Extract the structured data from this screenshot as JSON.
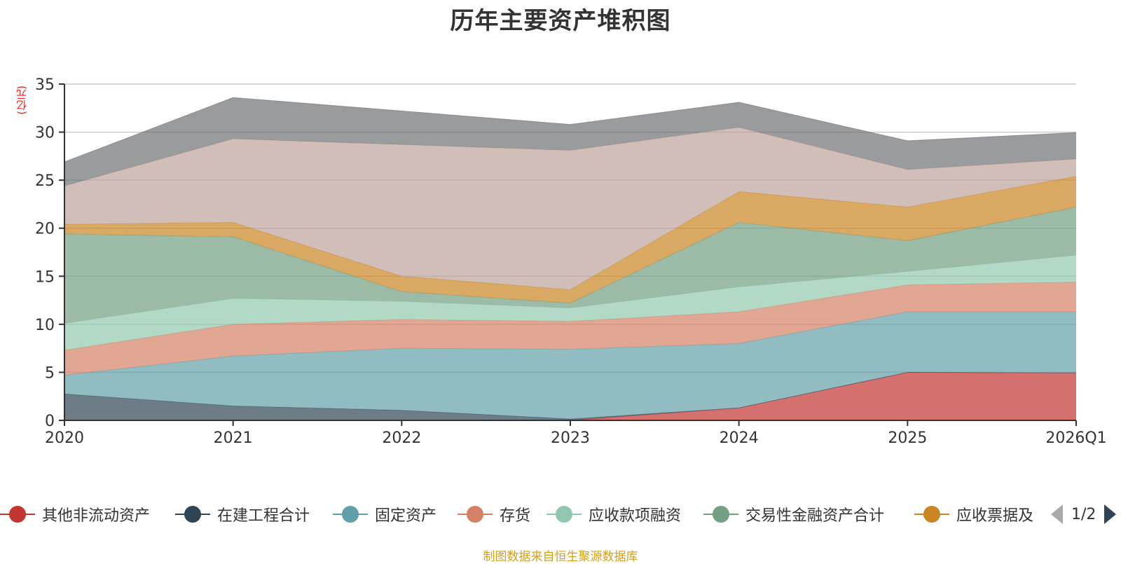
{
  "title": "历年主要资产堆积图",
  "unit_label": "(亿元)",
  "footer": "制图数据来自恒生聚源数据库",
  "legend": {
    "page_indicator": "1/2",
    "prev_icon": "triangle-left-icon",
    "next_icon": "triangle-right-icon"
  },
  "chart_data": {
    "type": "area",
    "stacked": true,
    "title": "历年主要资产堆积图",
    "xlabel": "",
    "ylabel": "(亿元)",
    "ylim": [
      0,
      35
    ],
    "yticks": [
      0,
      5,
      10,
      15,
      20,
      25,
      30,
      35
    ],
    "grid": true,
    "legend_position": "bottom",
    "categories": [
      "2020",
      "2021",
      "2022",
      "2023",
      "2024",
      "2025",
      "2026Q1"
    ],
    "series": [
      {
        "name": "其他非流动资产",
        "color": "#c23531",
        "legend_visible": true,
        "values": [
          0,
          0,
          0,
          0,
          1.3,
          5.0,
          4.95
        ]
      },
      {
        "name": "在建工程合计",
        "color": "#2f4554",
        "legend_visible": true,
        "values": [
          2.75,
          1.5,
          1.05,
          0.15,
          0,
          0,
          0
        ]
      },
      {
        "name": "固定资产",
        "color": "#61a0a8",
        "legend_visible": true,
        "values": [
          1.95,
          5.2,
          6.45,
          7.25,
          6.7,
          6.3,
          6.35
        ]
      },
      {
        "name": "存货",
        "color": "#d48265",
        "legend_visible": true,
        "values": [
          2.6,
          3.3,
          3.0,
          2.9,
          3.3,
          2.8,
          3.1
        ]
      },
      {
        "name": "应收款项融资",
        "color": "#91c7ae",
        "legend_visible": true,
        "values": [
          2.8,
          2.7,
          1.9,
          1.4,
          2.6,
          1.4,
          2.8
        ]
      },
      {
        "name": "交易性金融资产合计",
        "color": "#749f83",
        "legend_visible": true,
        "values": [
          9.3,
          6.4,
          1.0,
          0.5,
          6.7,
          3.2,
          5.0
        ]
      },
      {
        "name": "应收票据及",
        "color": "#ca8622",
        "legend_visible": true,
        "values": [
          1.0,
          1.5,
          1.6,
          1.4,
          3.2,
          3.5,
          3.2
        ]
      },
      {
        "name": "",
        "color": "#bda29a",
        "legend_visible": false,
        "values": [
          4.0,
          8.7,
          13.7,
          14.5,
          6.7,
          3.9,
          1.8
        ]
      },
      {
        "name": "",
        "color": "#6e7074",
        "legend_visible": false,
        "values": [
          2.5,
          4.3,
          3.5,
          2.7,
          2.6,
          3.0,
          2.75
        ]
      }
    ]
  }
}
